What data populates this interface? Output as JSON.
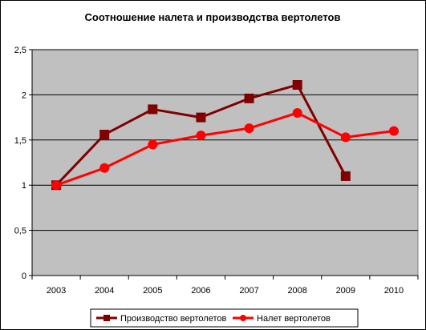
{
  "colors": {
    "plot_background": "#c0c0c0",
    "gridline": "#000000",
    "production_series": "#800000",
    "flight_series": "#ff0000"
  },
  "chart_data": {
    "type": "line",
    "title": "Соотношение налета и производства вертолетов",
    "xlabel": "",
    "ylabel": "",
    "categories": [
      "2003",
      "2004",
      "2005",
      "2006",
      "2007",
      "2008",
      "2009",
      "2010"
    ],
    "ylim": [
      0,
      2.5
    ],
    "y_ticks": [
      0,
      0.5,
      1,
      1.5,
      2,
      2.5
    ],
    "y_tick_labels": [
      "0",
      "0,5",
      "1",
      "1,5",
      "2",
      "2,5"
    ],
    "grid": true,
    "legend_position": "bottom",
    "series": [
      {
        "name": "Производство вертолетов",
        "marker": "square",
        "values": [
          1.0,
          1.56,
          1.84,
          1.75,
          1.96,
          2.11,
          1.1,
          null
        ]
      },
      {
        "name": "Налет вертолетов",
        "marker": "circle",
        "values": [
          1.0,
          1.19,
          1.45,
          1.55,
          1.63,
          1.8,
          1.53,
          1.6
        ]
      }
    ]
  }
}
